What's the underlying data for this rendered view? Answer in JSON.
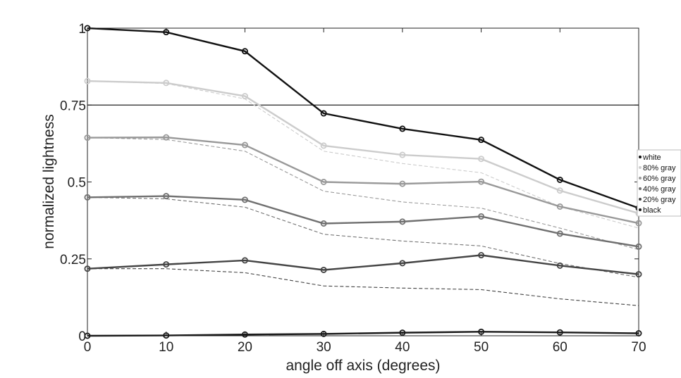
{
  "chart_data": {
    "type": "line",
    "title": "",
    "xlabel": "angle off axis (degrees)",
    "ylabel": "normalized lightness",
    "xlim": [
      0,
      70
    ],
    "ylim": [
      0,
      1
    ],
    "x": [
      0,
      10,
      20,
      30,
      40,
      50,
      60,
      70
    ],
    "x_ticks": [
      0,
      10,
      20,
      30,
      40,
      50,
      60,
      70
    ],
    "y_ticks": [
      0,
      0.25,
      0.5,
      0.75,
      1
    ],
    "x_tick_labels": [
      "0",
      "10",
      "20",
      "30",
      "40",
      "50",
      "60",
      "70"
    ],
    "y_tick_labels": [
      "0",
      "0.25",
      "0.5",
      "0.75",
      "1"
    ],
    "grid": false,
    "reference_line": 0.75,
    "legend_placement": "right",
    "series": [
      {
        "name": "white",
        "color": "#111111",
        "values": [
          1.0,
          0.987,
          0.925,
          0.723,
          0.673,
          0.637,
          0.507,
          0.415
        ],
        "dashed_values": null
      },
      {
        "name": "80% gray",
        "color": "#cccccc",
        "values": [
          0.828,
          0.822,
          0.779,
          0.618,
          0.588,
          0.575,
          0.472,
          0.398
        ],
        "dashed_values": [
          0.828,
          0.82,
          0.77,
          0.6,
          0.56,
          0.53,
          0.42,
          0.35
        ]
      },
      {
        "name": "60% gray",
        "color": "#999999",
        "values": [
          0.644,
          0.645,
          0.62,
          0.5,
          0.494,
          0.501,
          0.42,
          0.366
        ],
        "dashed_values": [
          0.644,
          0.638,
          0.6,
          0.47,
          0.435,
          0.415,
          0.35,
          0.28
        ]
      },
      {
        "name": "40% gray",
        "color": "#707070",
        "values": [
          0.45,
          0.454,
          0.442,
          0.365,
          0.371,
          0.388,
          0.332,
          0.29
        ],
        "dashed_values": [
          0.45,
          0.445,
          0.418,
          0.33,
          0.308,
          0.292,
          0.235,
          0.19
        ]
      },
      {
        "name": "20% gray",
        "color": "#444444",
        "values": [
          0.218,
          0.232,
          0.245,
          0.214,
          0.236,
          0.262,
          0.228,
          0.2
        ],
        "dashed_values": [
          0.218,
          0.218,
          0.205,
          0.162,
          0.155,
          0.15,
          0.12,
          0.098
        ]
      },
      {
        "name": "black",
        "color": "#1a1a1a",
        "values": [
          0.0,
          0.001,
          0.004,
          0.006,
          0.01,
          0.013,
          0.011,
          0.008
        ],
        "dashed_values": null
      }
    ]
  }
}
